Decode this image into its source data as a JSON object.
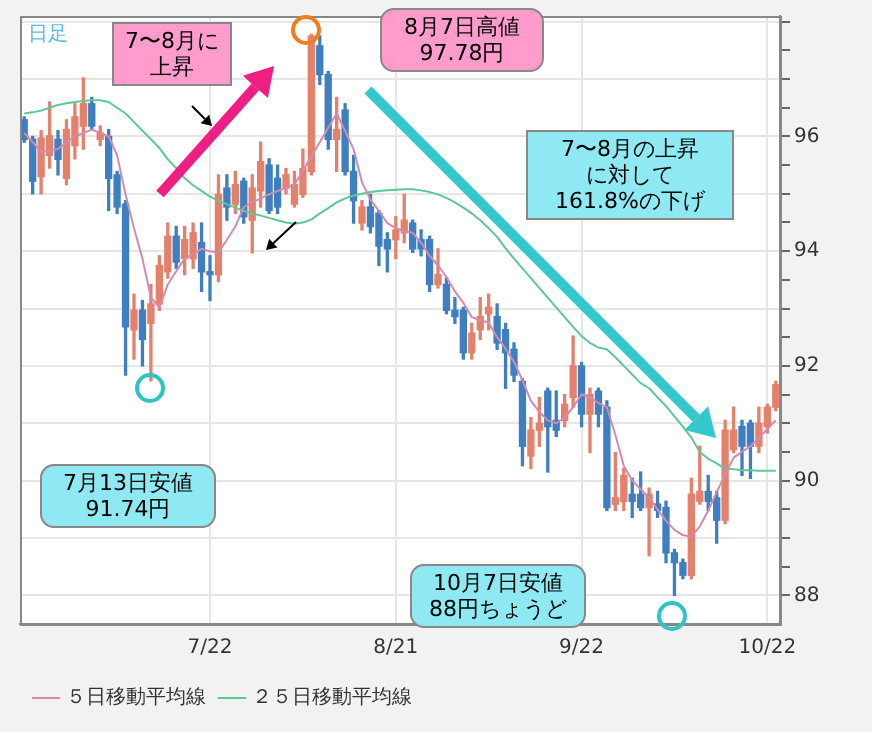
{
  "chart_data": {
    "type": "candlestick",
    "categories": [
      null,
      null,
      null,
      null,
      null,
      null,
      null,
      null,
      null,
      null,
      null,
      null,
      null,
      null,
      null,
      null,
      null,
      null,
      null,
      null,
      null,
      null,
      "7/22",
      null,
      null,
      null,
      null,
      null,
      null,
      null,
      null,
      null,
      null,
      null,
      null,
      null,
      null,
      null,
      null,
      null,
      null,
      null,
      null,
      null,
      "8/21",
      null,
      null,
      null,
      null,
      null,
      null,
      null,
      null,
      null,
      null,
      null,
      null,
      null,
      null,
      null,
      null,
      null,
      null,
      null,
      null,
      null,
      "9/22",
      null,
      null,
      null,
      null,
      null,
      null,
      null,
      null,
      null,
      null,
      null,
      null,
      null,
      null,
      null,
      null,
      null,
      null,
      null,
      null,
      null,
      "10/22",
      null
    ],
    "ohlc": [
      [
        96.29,
        96.34,
        95.9,
        95.95
      ],
      [
        95.95,
        96.0,
        95.0,
        95.22
      ],
      [
        95.3,
        96.1,
        95.0,
        95.97
      ],
      [
        95.67,
        96.6,
        95.45,
        96.01
      ],
      [
        95.95,
        96.1,
        95.33,
        95.6
      ],
      [
        95.27,
        96.29,
        95.16,
        96.12
      ],
      [
        95.84,
        96.57,
        95.61,
        96.34
      ],
      [
        96.18,
        97.02,
        95.78,
        96.57
      ],
      [
        96.57,
        96.68,
        96.12,
        96.18
      ],
      [
        95.95,
        96.18,
        95.84,
        96.06
      ],
      [
        96.0,
        96.12,
        94.71,
        95.27
      ],
      [
        95.33,
        95.39,
        94.66,
        94.77
      ],
      [
        94.82,
        94.88,
        91.84,
        92.68
      ],
      [
        92.63,
        93.25,
        92.12,
        92.97
      ],
      [
        92.97,
        93.14,
        92.0,
        92.46
      ],
      [
        92.74,
        93.42,
        91.74,
        93.08
      ],
      [
        93.08,
        93.92,
        92.97,
        93.75
      ],
      [
        93.64,
        94.49,
        93.53,
        94.26
      ],
      [
        94.26,
        94.43,
        93.7,
        93.81
      ],
      [
        93.87,
        94.43,
        93.59,
        94.2
      ],
      [
        93.87,
        94.49,
        93.7,
        94.32
      ],
      [
        94.15,
        94.49,
        93.3,
        93.64
      ],
      [
        93.64,
        93.92,
        93.14,
        93.59
      ],
      [
        93.59,
        95.33,
        93.47,
        94.99
      ],
      [
        95.1,
        95.33,
        94.54,
        94.77
      ],
      [
        94.82,
        95.39,
        94.66,
        95.16
      ],
      [
        95.22,
        95.27,
        94.49,
        94.6
      ],
      [
        94.54,
        95.33,
        93.97,
        95.1
      ],
      [
        95.05,
        95.9,
        94.77,
        95.56
      ],
      [
        95.5,
        95.61,
        94.66,
        94.71
      ],
      [
        95.27,
        95.5,
        94.66,
        94.77
      ],
      [
        95.1,
        95.44,
        95.0,
        95.33
      ],
      [
        94.82,
        95.39,
        94.77,
        95.16
      ],
      [
        94.99,
        95.78,
        94.94,
        95.44
      ],
      [
        95.39,
        97.78,
        95.33,
        97.75
      ],
      [
        97.58,
        97.75,
        96.91,
        97.08
      ],
      [
        97.08,
        97.13,
        95.78,
        95.95
      ],
      [
        95.95,
        96.68,
        95.39,
        96.12
      ],
      [
        96.46,
        96.57,
        95.33,
        95.39
      ],
      [
        95.39,
        95.67,
        94.49,
        94.88
      ],
      [
        94.49,
        94.88,
        94.37,
        94.77
      ],
      [
        94.77,
        94.99,
        94.32,
        94.43
      ],
      [
        94.66,
        94.71,
        93.75,
        94.09
      ],
      [
        94.2,
        94.32,
        93.64,
        94.04
      ],
      [
        94.2,
        94.6,
        93.87,
        94.37
      ],
      [
        94.32,
        94.99,
        94.15,
        94.54
      ],
      [
        94.49,
        94.54,
        93.98,
        94.04
      ],
      [
        94.2,
        94.37,
        93.92,
        94.04
      ],
      [
        94.2,
        94.26,
        93.3,
        93.42
      ],
      [
        93.42,
        94.04,
        93.36,
        93.59
      ],
      [
        93.42,
        93.53,
        92.91,
        92.97
      ],
      [
        92.97,
        93.19,
        92.74,
        92.86
      ],
      [
        92.97,
        93.02,
        92.12,
        92.23
      ],
      [
        92.23,
        92.74,
        92.12,
        92.57
      ],
      [
        92.63,
        93.19,
        92.46,
        92.86
      ],
      [
        92.91,
        93.25,
        92.63,
        93.02
      ],
      [
        92.86,
        93.08,
        92.29,
        92.4
      ],
      [
        92.63,
        92.74,
        91.61,
        92.23
      ],
      [
        92.29,
        92.4,
        91.73,
        91.84
      ],
      [
        91.73,
        91.78,
        90.26,
        90.6
      ],
      [
        90.43,
        91.1,
        90.21,
        90.88
      ],
      [
        90.88,
        91.45,
        90.6,
        91.0
      ],
      [
        91.56,
        91.61,
        90.15,
        90.94
      ],
      [
        91.05,
        91.56,
        90.77,
        90.88
      ],
      [
        91.05,
        91.5,
        90.94,
        91.33
      ],
      [
        91.45,
        92.52,
        91.28,
        92.0
      ],
      [
        92.0,
        92.06,
        90.94,
        91.16
      ],
      [
        91.16,
        91.61,
        90.49,
        91.5
      ],
      [
        91.56,
        91.61,
        90.94,
        91.16
      ],
      [
        91.28,
        91.39,
        89.48,
        89.53
      ],
      [
        89.59,
        90.49,
        89.48,
        89.7
      ],
      [
        89.64,
        90.21,
        89.48,
        90.09
      ],
      [
        89.76,
        90.04,
        89.36,
        89.64
      ],
      [
        89.76,
        90.15,
        89.48,
        89.53
      ],
      [
        89.53,
        89.87,
        88.69,
        89.76
      ],
      [
        89.59,
        89.81,
        89.36,
        89.48
      ],
      [
        89.53,
        89.64,
        88.57,
        88.74
      ],
      [
        88.74,
        88.8,
        88.0,
        88.57
      ],
      [
        88.57,
        88.63,
        88.29,
        88.35
      ],
      [
        88.35,
        90.04,
        88.29,
        89.76
      ],
      [
        89.64,
        90.6,
        89.59,
        89.81
      ],
      [
        89.81,
        90.09,
        89.48,
        89.64
      ],
      [
        89.7,
        89.81,
        88.91,
        89.31
      ],
      [
        89.31,
        91.05,
        89.25,
        90.88
      ],
      [
        90.54,
        91.28,
        90.49,
        90.88
      ],
      [
        90.94,
        91.05,
        90.09,
        90.6
      ],
      [
        91.0,
        91.05,
        90.04,
        90.6
      ],
      [
        90.6,
        91.28,
        90.49,
        91.0
      ],
      [
        90.94,
        91.33,
        90.83,
        91.28
      ],
      [
        91.28,
        91.73,
        91.22,
        91.67
      ]
    ],
    "colors": [
      "#3d7fc1",
      "#3d7fc1",
      "#e5806b",
      "#e5806b",
      "#3d7fc1",
      "#e5806b",
      "#e5806b",
      "#e5806b",
      "#3d7fc1",
      "#e5806b",
      "#3d7fc1",
      "#3d7fc1",
      "#3d7fc1",
      "#e5806b",
      "#3d7fc1",
      "#e5806b",
      "#e5806b",
      "#e5806b",
      "#3d7fc1",
      "#e5806b",
      "#e5806b",
      "#3d7fc1",
      "#3d7fc1",
      "#e5806b",
      "#3d7fc1",
      "#e5806b",
      "#3d7fc1",
      "#e5806b",
      "#e5806b",
      "#3d7fc1",
      "#3d7fc1",
      "#e5806b",
      "#e5806b",
      "#e5806b",
      "#e5806b",
      "#3d7fc1",
      "#3d7fc1",
      "#e5806b",
      "#3d7fc1",
      "#3d7fc1",
      "#e5806b",
      "#3d7fc1",
      "#3d7fc1",
      "#3d7fc1",
      "#e5806b",
      "#e5806b",
      "#3d7fc1",
      "#3d7fc1",
      "#3d7fc1",
      "#e5806b",
      "#3d7fc1",
      "#3d7fc1",
      "#3d7fc1",
      "#e5806b",
      "#e5806b",
      "#e5806b",
      "#3d7fc1",
      "#3d7fc1",
      "#3d7fc1",
      "#3d7fc1",
      "#e5806b",
      "#e5806b",
      "#3d7fc1",
      "#3d7fc1",
      "#e5806b",
      "#e5806b",
      "#3d7fc1",
      "#e5806b",
      "#3d7fc1",
      "#3d7fc1",
      "#e5806b",
      "#e5806b",
      "#3d7fc1",
      "#3d7fc1",
      "#e5806b",
      "#3d7fc1",
      "#3d7fc1",
      "#3d7fc1",
      "#3d7fc1",
      "#e5806b",
      "#e5806b",
      "#3d7fc1",
      "#3d7fc1",
      "#e5806b",
      "#e5806b",
      "#3d7fc1",
      "#3d7fc1",
      "#e5806b",
      "#e5806b",
      "#e5806b"
    ],
    "series": [
      {
        "type": "line",
        "name": "５日移動平均線",
        "color": "#d48ab0",
        "values": [
          96.06,
          95.9,
          95.73,
          95.75,
          95.78,
          95.9,
          96.0,
          96.06,
          96.12,
          96.06,
          96.0,
          95.67,
          94.99,
          94.4,
          93.87,
          93.19,
          93.02,
          93.42,
          93.65,
          93.87,
          93.95,
          94.04,
          94.0,
          93.98,
          94.2,
          94.43,
          94.77,
          94.85,
          94.92,
          94.99,
          95.05,
          95.1,
          95.16,
          95.4,
          95.65,
          95.9,
          96.15,
          96.4,
          96.1,
          95.78,
          95.2,
          94.9,
          94.7,
          94.49,
          94.4,
          94.35,
          94.32,
          94.15,
          93.92,
          93.75,
          93.55,
          93.3,
          93.1,
          92.85,
          92.8,
          92.75,
          92.5,
          92.3,
          92.07,
          91.75,
          91.39,
          91.2,
          91.05,
          91.0,
          91.1,
          91.28,
          91.5,
          91.45,
          91.35,
          91.28,
          90.8,
          90.26,
          90.0,
          89.85,
          89.7,
          89.5,
          89.3,
          89.14,
          89.05,
          89.02,
          89.2,
          89.48,
          89.8,
          90.1,
          90.4,
          90.5,
          90.6,
          90.75,
          90.9,
          91.05
        ]
      },
      {
        "type": "line",
        "name": "２５日移動平均線",
        "color": "#5cc995",
        "values": [
          96.4,
          96.42,
          96.45,
          96.5,
          96.55,
          96.58,
          96.6,
          96.62,
          96.63,
          96.63,
          96.6,
          96.5,
          96.4,
          96.25,
          96.1,
          95.95,
          95.8,
          95.6,
          95.45,
          95.27,
          95.15,
          95.05,
          94.95,
          94.88,
          94.82,
          94.76,
          94.7,
          94.66,
          94.62,
          94.58,
          94.54,
          94.5,
          94.48,
          94.5,
          94.55,
          94.66,
          94.75,
          94.85,
          94.92,
          94.97,
          95.0,
          95.03,
          95.05,
          95.06,
          95.07,
          95.08,
          95.08,
          95.06,
          95.03,
          94.99,
          94.93,
          94.85,
          94.76,
          94.66,
          94.54,
          94.4,
          94.25,
          94.05,
          93.87,
          93.7,
          93.53,
          93.36,
          93.19,
          93.02,
          92.85,
          92.68,
          92.52,
          92.4,
          92.32,
          92.29,
          92.15,
          92.0,
          91.85,
          91.7,
          91.61,
          91.45,
          91.3,
          91.12,
          90.94,
          90.75,
          90.5,
          90.38,
          90.3,
          90.21,
          90.2,
          90.18,
          90.18,
          90.17,
          90.17,
          90.17
        ]
      }
    ],
    "ylim": [
      87.5,
      98.1
    ],
    "yticks": [
      88,
      {
        "value": 88.5,
        "label": null
      },
      90,
      {
        "value": 89,
        "label": null
      },
      {
        "value": 89.5,
        "label": null
      },
      {
        "value": 90.5,
        "label": null
      },
      {
        "value": 91,
        "label": null
      },
      {
        "value": 91.5,
        "label": null
      },
      92,
      {
        "value": 92.5,
        "label": null
      },
      {
        "value": 93,
        "label": null
      },
      {
        "value": 93.5,
        "label": null
      },
      94,
      {
        "value": 94.5,
        "label": null
      },
      {
        "value": 95,
        "label": null
      },
      {
        "value": 95.5,
        "label": null
      },
      96,
      {
        "value": 96.5,
        "label": null
      },
      {
        "value": 97,
        "label": null
      },
      {
        "value": 97.5,
        "label": null
      },
      {
        "value": 98,
        "label": null
      }
    ],
    "annotations": [
      "日足",
      "7〜8月に上昇",
      "8月7日高値97.78円",
      "7〜8月の上昇に対して161.8%の下げ",
      "7月13日安値91.74円",
      "10月7日安値88円ちょうど"
    ],
    "grid": true,
    "legend": "bottom",
    "marker": "none"
  }
}
